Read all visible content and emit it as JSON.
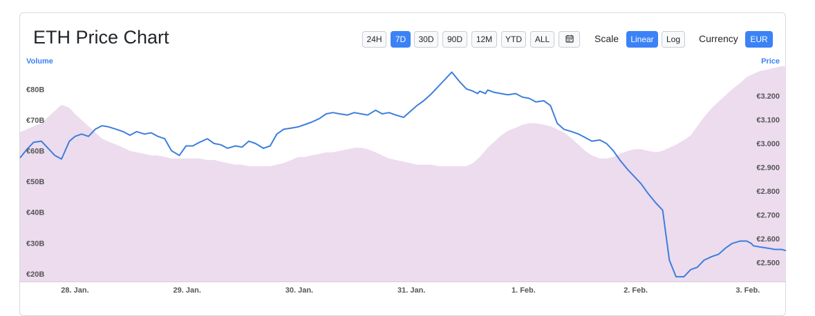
{
  "header": {
    "title": "ETH Price Chart",
    "ranges": [
      "24H",
      "7D",
      "30D",
      "90D",
      "12M",
      "YTD",
      "ALL"
    ],
    "active_range": "7D",
    "calendar_icon": "calendar-icon",
    "scale_label": "Scale",
    "scale_options": [
      "Linear",
      "Log"
    ],
    "active_scale": "Linear",
    "currency_label": "Currency",
    "currency_value": "EUR"
  },
  "colors": {
    "accent": "#3b82f6",
    "price_line": "#3b7ddd",
    "volume_fill": "#ecdcee"
  },
  "chart_data": {
    "type": "line",
    "left_axis_title": "Volume",
    "right_axis_title": "Price",
    "x_tick_labels": [
      "28. Jan.",
      "29. Jan.",
      "30. Jan.",
      "31. Jan.",
      "1. Feb.",
      "2. Feb.",
      "3. Feb."
    ],
    "x_domain": [
      -0.49,
      6.34
    ],
    "y_volume_ticks": [
      "€20B",
      "€30B",
      "€40B",
      "€50B",
      "€60B",
      "€70B",
      "€80B"
    ],
    "y_volume_tick_values": [
      20,
      30,
      40,
      50,
      60,
      70,
      80
    ],
    "y_volume_range": [
      17.5,
      87.5
    ],
    "y_price_ticks": [
      "€2.500",
      "€2.600",
      "€2.700",
      "€2.800",
      "€2.900",
      "€3.000",
      "€3.100",
      "€3.200"
    ],
    "y_price_tick_values": [
      2500,
      2600,
      2700,
      2800,
      2900,
      3000,
      3100,
      3200
    ],
    "y_price_range": [
      2420,
      3325
    ],
    "series": [
      {
        "name": "Price",
        "axis": "right",
        "x": [
          -0.49,
          -0.43,
          -0.37,
          -0.3,
          -0.24,
          -0.18,
          -0.12,
          -0.05,
          0.0,
          0.06,
          0.12,
          0.18,
          0.24,
          0.3,
          0.37,
          0.43,
          0.49,
          0.55,
          0.62,
          0.68,
          0.74,
          0.8,
          0.86,
          0.93,
          0.99,
          1.05,
          1.11,
          1.18,
          1.24,
          1.3,
          1.36,
          1.43,
          1.49,
          1.55,
          1.61,
          1.68,
          1.74,
          1.8,
          1.86,
          1.93,
          1.99,
          2.05,
          2.11,
          2.18,
          2.24,
          2.3,
          2.36,
          2.43,
          2.49,
          2.55,
          2.61,
          2.68,
          2.74,
          2.8,
          2.86,
          2.93,
          2.99,
          3.05,
          3.11,
          3.18,
          3.24,
          3.3,
          3.36,
          3.43,
          3.49,
          3.55,
          3.59,
          3.61,
          3.66,
          3.68,
          3.74,
          3.8,
          3.86,
          3.93,
          3.99,
          4.05,
          4.11,
          4.18,
          4.24,
          4.3,
          4.36,
          4.43,
          4.49,
          4.55,
          4.61,
          4.68,
          4.74,
          4.8,
          4.86,
          4.93,
          4.99,
          5.05,
          5.11,
          5.18,
          5.24,
          5.3,
          5.36,
          5.43,
          5.49,
          5.55,
          5.61,
          5.68,
          5.74,
          5.8,
          5.86,
          5.93,
          5.99,
          6.03,
          6.05,
          6.11,
          6.18,
          6.24,
          6.3,
          6.34
        ],
        "y": [
          2940,
          2975,
          3005,
          3010,
          2980,
          2950,
          2935,
          3010,
          3030,
          3040,
          3030,
          3060,
          3075,
          3070,
          3060,
          3050,
          3035,
          3050,
          3040,
          3045,
          3030,
          3020,
          2970,
          2950,
          2990,
          2990,
          3005,
          3020,
          3000,
          2995,
          2980,
          2990,
          2985,
          3010,
          3000,
          2980,
          2990,
          3040,
          3060,
          3065,
          3070,
          3080,
          3090,
          3105,
          3125,
          3130,
          3125,
          3120,
          3130,
          3125,
          3120,
          3140,
          3125,
          3130,
          3120,
          3110,
          3135,
          3160,
          3180,
          3210,
          3240,
          3270,
          3300,
          3260,
          3230,
          3220,
          3210,
          3220,
          3210,
          3225,
          3215,
          3210,
          3205,
          3210,
          3195,
          3190,
          3175,
          3180,
          3160,
          3085,
          3060,
          3050,
          3040,
          3025,
          3010,
          3015,
          3000,
          2970,
          2930,
          2890,
          2860,
          2830,
          2790,
          2750,
          2720,
          2510,
          2440,
          2440,
          2470,
          2480,
          2510,
          2525,
          2535,
          2560,
          2580,
          2590,
          2590,
          2580,
          2570,
          2565,
          2560,
          2555,
          2555,
          2550
        ]
      },
      {
        "name": "Volume",
        "axis": "left",
        "x": [
          -0.49,
          -0.43,
          -0.37,
          -0.3,
          -0.24,
          -0.18,
          -0.12,
          -0.05,
          0.0,
          0.06,
          0.12,
          0.18,
          0.24,
          0.3,
          0.37,
          0.43,
          0.49,
          0.55,
          0.62,
          0.68,
          0.74,
          0.8,
          0.86,
          0.93,
          0.99,
          1.05,
          1.11,
          1.18,
          1.24,
          1.3,
          1.36,
          1.43,
          1.49,
          1.55,
          1.61,
          1.68,
          1.74,
          1.8,
          1.86,
          1.93,
          1.99,
          2.05,
          2.11,
          2.18,
          2.24,
          2.3,
          2.36,
          2.43,
          2.49,
          2.55,
          2.61,
          2.68,
          2.74,
          2.8,
          2.86,
          2.93,
          2.99,
          3.05,
          3.11,
          3.18,
          3.24,
          3.3,
          3.36,
          3.43,
          3.49,
          3.55,
          3.61,
          3.68,
          3.74,
          3.8,
          3.86,
          3.93,
          3.99,
          4.05,
          4.11,
          4.18,
          4.24,
          4.3,
          4.36,
          4.43,
          4.49,
          4.55,
          4.61,
          4.68,
          4.74,
          4.8,
          4.86,
          4.93,
          4.99,
          5.05,
          5.11,
          5.18,
          5.24,
          5.3,
          5.36,
          5.43,
          5.49,
          5.55,
          5.61,
          5.68,
          5.74,
          5.8,
          5.86,
          5.93,
          5.99,
          6.05,
          6.11,
          6.18,
          6.24,
          6.3,
          6.34
        ],
        "y": [
          66,
          67,
          68,
          69,
          71,
          73,
          75,
          74,
          72,
          70,
          68,
          66,
          64,
          63,
          62,
          61,
          60,
          59.5,
          59,
          58.5,
          58.5,
          58,
          57.5,
          57.5,
          57.5,
          57.5,
          57.5,
          57,
          57,
          56.5,
          56,
          55.5,
          55.5,
          55,
          55,
          55,
          55,
          55.5,
          56,
          57,
          58,
          58,
          58.5,
          59,
          59.5,
          59.5,
          60,
          60.5,
          61,
          61,
          60.5,
          59.5,
          58.5,
          57.5,
          57,
          56.5,
          56,
          55.5,
          55.5,
          55.5,
          55,
          55,
          55,
          55,
          55,
          56,
          58,
          61,
          63,
          65,
          66.5,
          67.5,
          68.5,
          69,
          69,
          68.5,
          68,
          67,
          66,
          64,
          62,
          60,
          58.5,
          57.5,
          57.5,
          58,
          59,
          60,
          60.5,
          60.5,
          60,
          59.5,
          60,
          61,
          62,
          63.5,
          65,
          68,
          71,
          74,
          76,
          78,
          80,
          82,
          84,
          85,
          86,
          86.5,
          87,
          87.5,
          87.5
        ]
      }
    ]
  }
}
